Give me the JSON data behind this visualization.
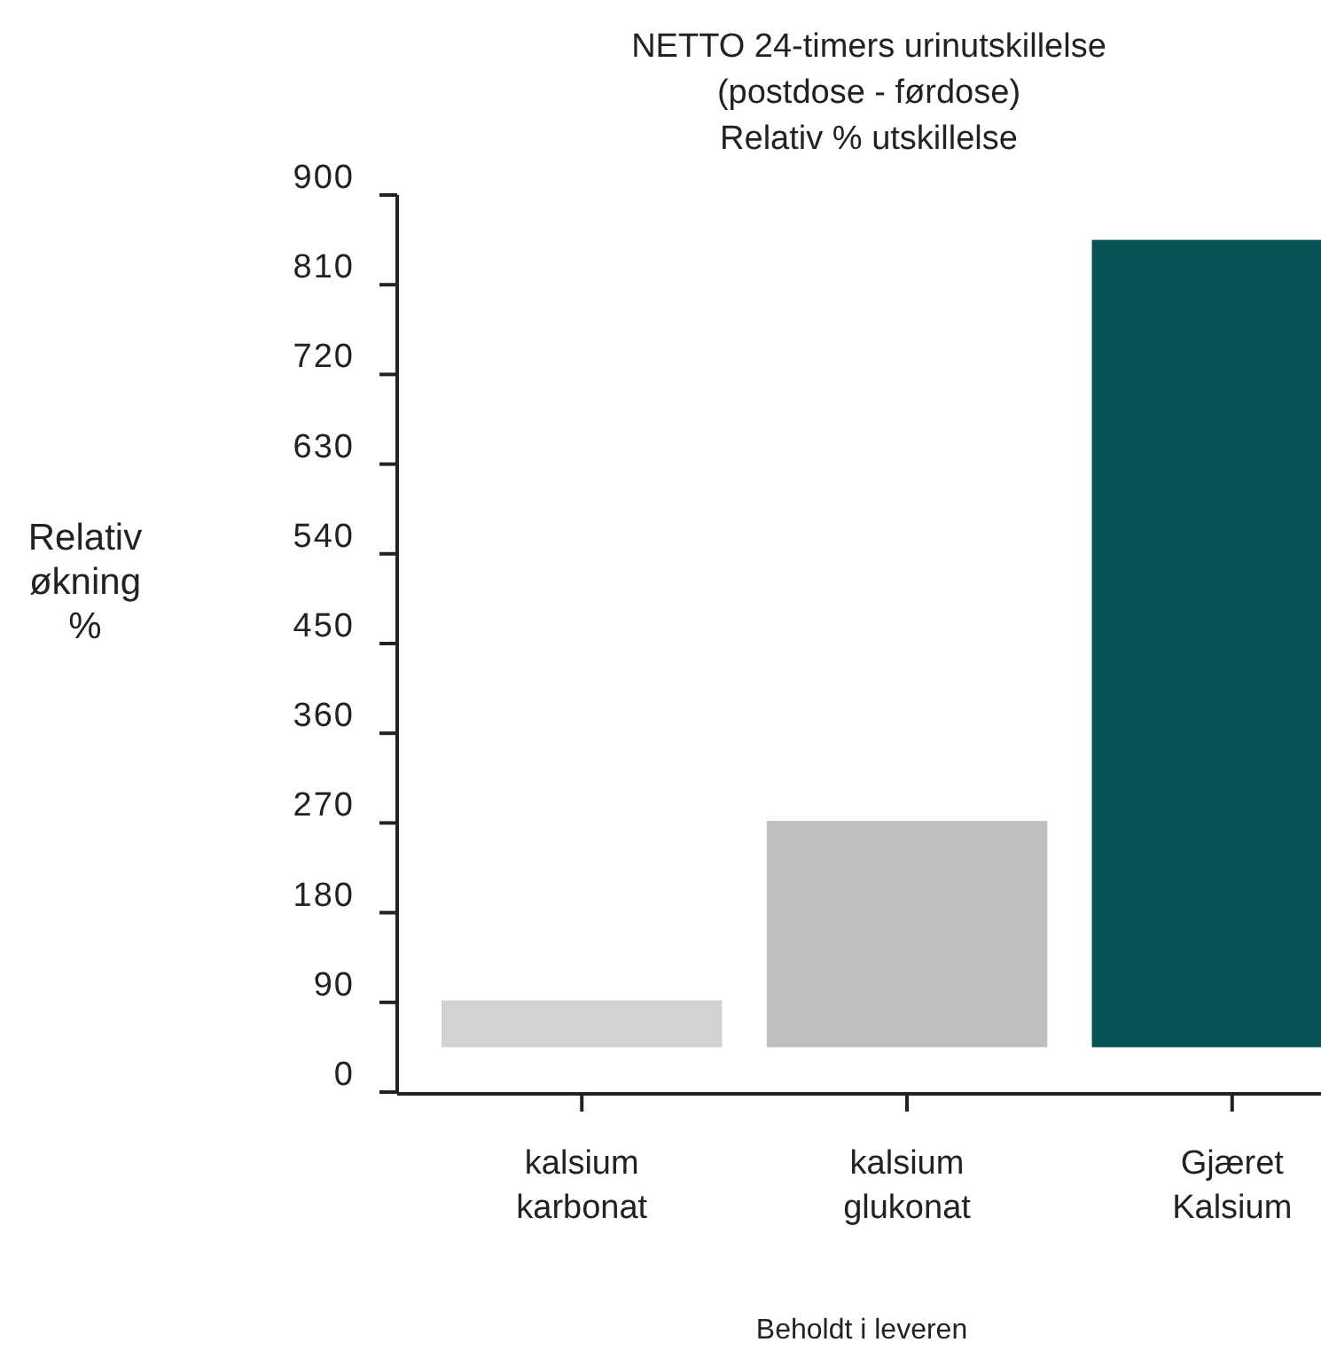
{
  "chart_data": {
    "type": "bar",
    "title": "NETTO 24-timers urinutskillelse\n(postdose - førdose)\nRelativ % utskillelse",
    "ylabel": "Relativ\nøkning\n%",
    "xlabel": "Beholdt i leveren",
    "categories": [
      "kalsium\nkarbonat",
      "kalsium\nglukonat",
      "Gjæret\nKalsium"
    ],
    "base": [
      45,
      45,
      45
    ],
    "values": [
      47,
      227,
      810
    ],
    "colors": [
      "#d1d2d4",
      "#bebfc1",
      "#065355"
    ],
    "ylim": [
      0,
      900
    ],
    "yticks": [
      0,
      90,
      180,
      270,
      360,
      450,
      540,
      630,
      720,
      810,
      900
    ],
    "grid": false
  }
}
